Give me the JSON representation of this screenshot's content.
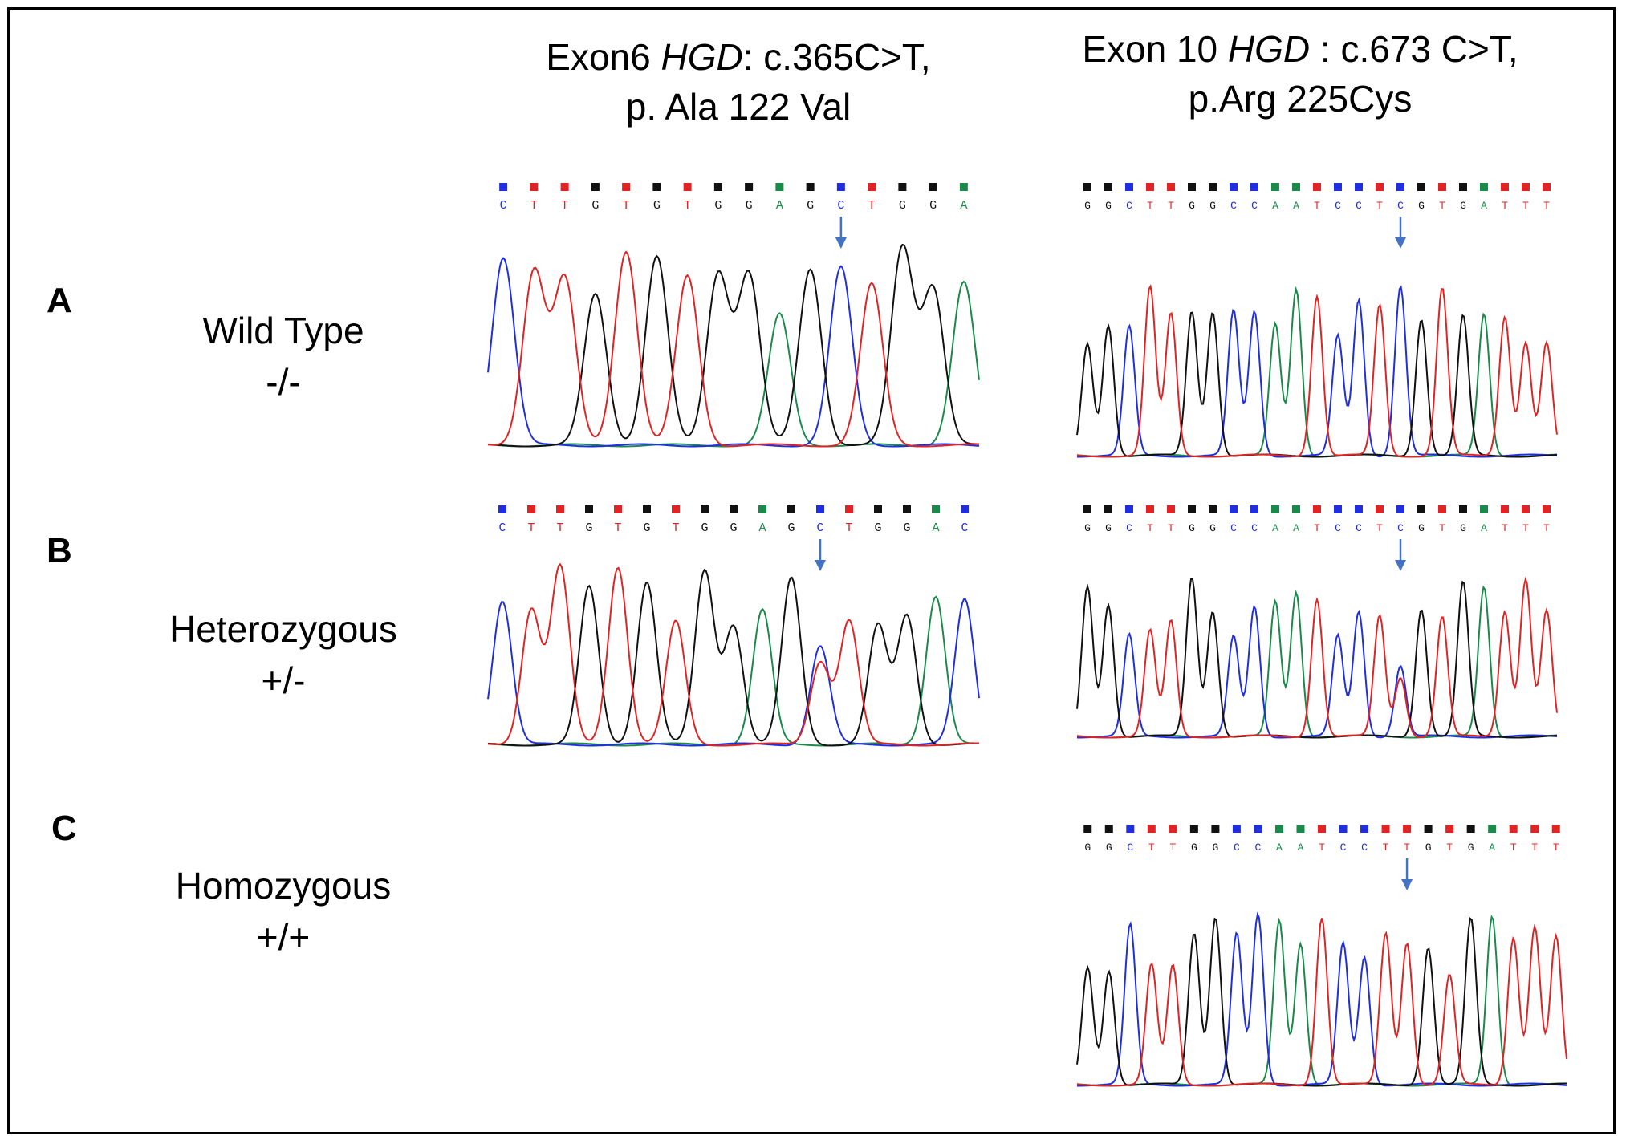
{
  "colors": {
    "A": "#1a8a4a",
    "C": "#1f2fe0",
    "G": "#111111",
    "T": "#e02424",
    "arrow": "#4472c4"
  },
  "columns": [
    {
      "id": "exon6",
      "title_pre": "Exon6 ",
      "title_gene": "HGD",
      "title_post": ": c.365C>T,",
      "line2": "p. Ala 122 Val"
    },
    {
      "id": "exon10",
      "title_pre": "Exon 10 ",
      "title_gene": "HGD",
      "title_post": " : c.673 C>T,",
      "line2": "p.Arg 225Cys"
    }
  ],
  "rows": [
    {
      "letter": "A",
      "label": "Wild Type",
      "genotype": "-/-"
    },
    {
      "letter": "B",
      "label": "Heterozygous",
      "genotype": "+/-"
    },
    {
      "letter": "C",
      "label": "Homozygous",
      "genotype": "+/+"
    }
  ],
  "panels": [
    {
      "id": "A-exon6",
      "row": "A",
      "col": "exon6",
      "sequence": "CTTGTGTGGAGCTGGA",
      "mutation_index": 11,
      "call": "C"
    },
    {
      "id": "A-exon10",
      "row": "A",
      "col": "exon10",
      "sequence": "GGCTTGGCCAATCCTCGTGATTT",
      "mutation_index": 15,
      "call": "C"
    },
    {
      "id": "B-exon6",
      "row": "B",
      "col": "exon6",
      "sequence": "CTTGTGTGGAGCTGGAC",
      "mutation_index": 11,
      "call": "C/T"
    },
    {
      "id": "B-exon10",
      "row": "B",
      "col": "exon10",
      "sequence": "GGCTTGGCCAATCCTCGTGATTT",
      "mutation_index": 15,
      "call": "C/T"
    },
    {
      "id": "C-exon10",
      "row": "C",
      "col": "exon10",
      "sequence": "GGCTTGGCCAATCCTTGTGATTT",
      "mutation_index": 15,
      "call": "T"
    }
  ]
}
